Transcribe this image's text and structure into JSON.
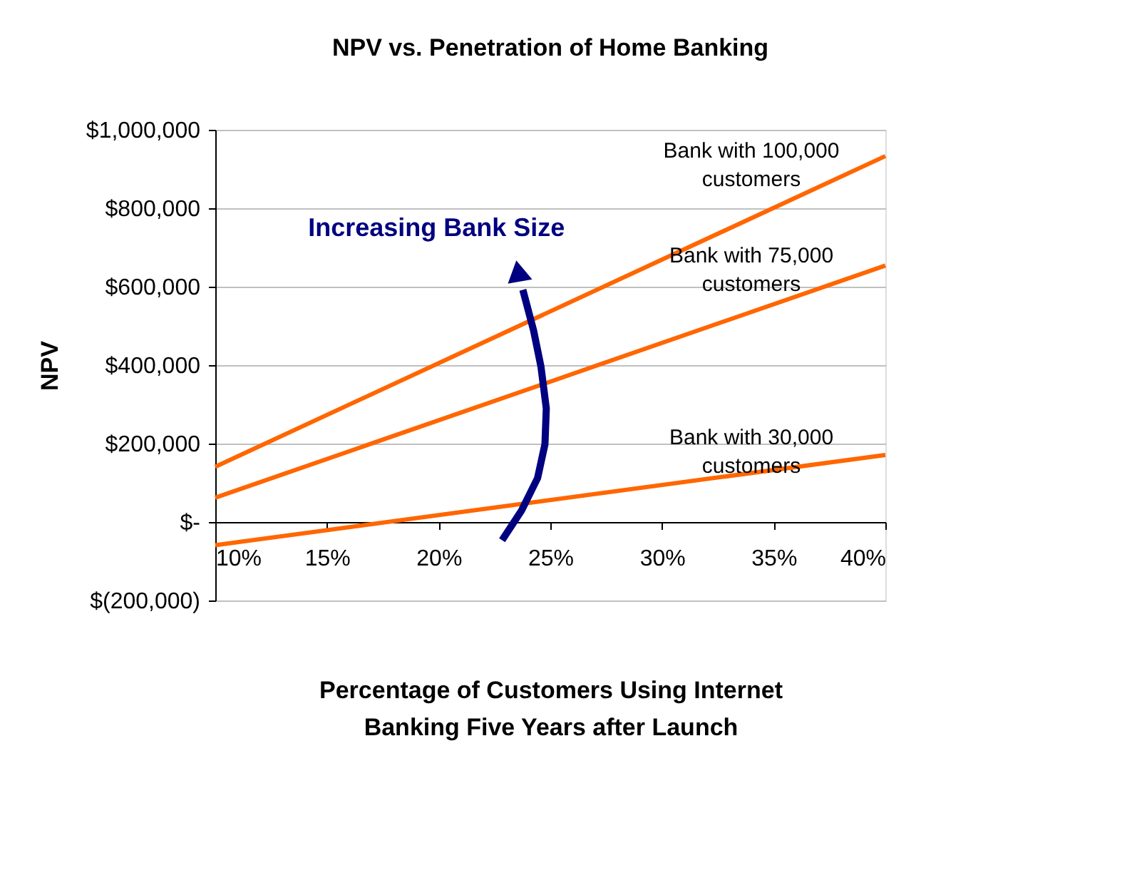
{
  "chart_data": {
    "type": "line",
    "title": "NPV vs. Penetration of Home Banking",
    "xlabel": "Percentage of Customers Using Internet Banking Five Years after Launch",
    "ylabel": "NPV",
    "x": [
      10,
      40
    ],
    "series": [
      {
        "name": "Bank with 100,000 customers",
        "color": "#ff6600",
        "values": [
          141000,
          933000
        ]
      },
      {
        "name": "Bank with 75,000 customers",
        "color": "#ff6600",
        "values": [
          62000,
          654000
        ]
      },
      {
        "name": "Bank with 30,000 customers",
        "color": "#ff6600",
        "values": [
          -59000,
          171000
        ]
      }
    ],
    "xlim": [
      10,
      40
    ],
    "xticks": [
      {
        "value": 10,
        "label": "10%"
      },
      {
        "value": 15,
        "label": "15%"
      },
      {
        "value": 20,
        "label": "20%"
      },
      {
        "value": 25,
        "label": "25%"
      },
      {
        "value": 30,
        "label": "30%"
      },
      {
        "value": 35,
        "label": "35%"
      },
      {
        "value": 40,
        "label": "40%"
      }
    ],
    "ylim": [
      -200000,
      1000000
    ],
    "yticks": [
      {
        "value": -200000,
        "label": "$(200,000)"
      },
      {
        "value": 0,
        "label": "$-"
      },
      {
        "value": 200000,
        "label": "$200,000"
      },
      {
        "value": 400000,
        "label": "$400,000"
      },
      {
        "value": 600000,
        "label": "$600,000"
      },
      {
        "value": 800000,
        "label": "$800,000"
      },
      {
        "value": 1000000,
        "label": "$1,000,000"
      }
    ],
    "annotations": [
      "Increasing Bank Size"
    ],
    "grid": "y",
    "legend": false,
    "marker": "none",
    "line_style": "solid"
  }
}
